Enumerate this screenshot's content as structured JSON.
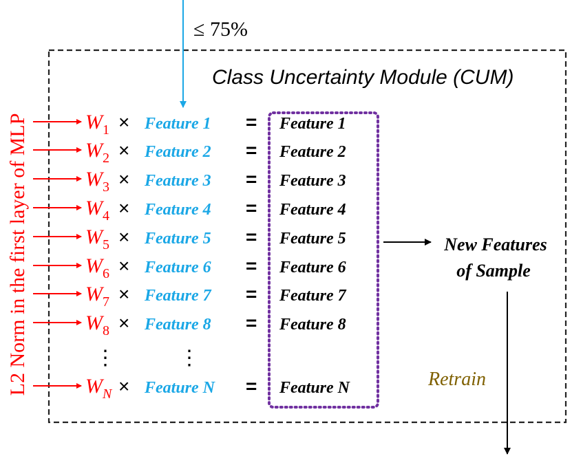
{
  "colors": {
    "red": "#ff0000",
    "cyan": "#1aa7e6",
    "black": "#000000",
    "purple": "#7030a0",
    "olive": "#7f6000",
    "border": "#222222"
  },
  "threshold_label": "≤ 75%",
  "module_title": "Class Uncertainty Module (CUM)",
  "side_label": "L2 Norm in the first layer of MLP",
  "weight_symbol": "W",
  "times_symbol": "×",
  "equals_symbol": "=",
  "rows": [
    {
      "sub": "1",
      "feature": "Feature 1",
      "output": "Feature 1"
    },
    {
      "sub": "2",
      "feature": "Feature 2",
      "output": "Feature 2"
    },
    {
      "sub": "3",
      "feature": "Feature 3",
      "output": "Feature 3"
    },
    {
      "sub": "4",
      "feature": "Feature 4",
      "output": "Feature 4"
    },
    {
      "sub": "5",
      "feature": "Feature 5",
      "output": "Feature 5"
    },
    {
      "sub": "6",
      "feature": "Feature 6",
      "output": "Feature 6"
    },
    {
      "sub": "7",
      "feature": "Feature 7",
      "output": "Feature 7"
    },
    {
      "sub": "8",
      "feature": "Feature 8",
      "output": "Feature 8"
    },
    {
      "sub": "N",
      "feature": "Feature N",
      "output": "Feature N"
    }
  ],
  "ellipsis": "⋮",
  "new_features_line1": "New Features",
  "new_features_line2": "of Sample",
  "retrain_label": "Retrain"
}
